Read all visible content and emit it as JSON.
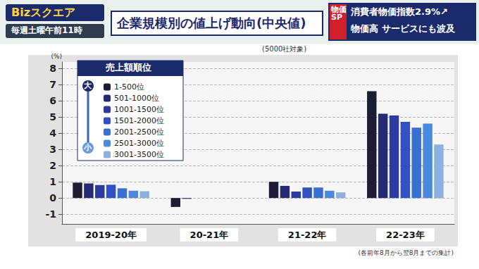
{
  "chart_data": {
    "type": "bar",
    "title": "企業規模別の値上げ動向(中央値)",
    "subtitle": "(5000社対象)",
    "y_label": "(%)",
    "note": "(各前年8月から翌8月までの集計)",
    "legend_title": "売上額順位",
    "annotations": [
      "Bizスクエア",
      "毎週土曜午前11時",
      "物価SP",
      "消費者物価指数2.9%↗",
      "物価高 サービスにも波及",
      "大",
      "小"
    ],
    "categories": [
      "2019-20年",
      "20-21年",
      "21-22年",
      "22-23年"
    ],
    "series": [
      {
        "name": "1-500位",
        "color": "#1c1c34",
        "values": [
          0.95,
          -0.55,
          1.0,
          6.6
        ]
      },
      {
        "name": "501-1000位",
        "color": "#252b72",
        "values": [
          0.9,
          -0.05,
          0.75,
          5.2
        ]
      },
      {
        "name": "1001-1500位",
        "color": "#2c3aa2",
        "values": [
          0.8,
          0,
          0.4,
          5.1
        ]
      },
      {
        "name": "1501-2000位",
        "color": "#3150c4",
        "values": [
          0.82,
          0,
          0.65,
          4.7
        ]
      },
      {
        "name": "2001-2500位",
        "color": "#376fd2",
        "values": [
          0.6,
          0,
          0.65,
          4.35
        ]
      },
      {
        "name": "2501-3000位",
        "color": "#4a8ade",
        "values": [
          0.45,
          0,
          0.45,
          4.6
        ]
      },
      {
        "name": "3001-3500位",
        "color": "#8eb0de",
        "values": [
          0.42,
          0,
          0.35,
          3.3
        ]
      }
    ],
    "ylim": [
      -1.6,
      8.4
    ],
    "yticks": [
      -1,
      0,
      1,
      2,
      3,
      4,
      5,
      6,
      7,
      8
    ],
    "grid": true,
    "legend": "top-left"
  }
}
